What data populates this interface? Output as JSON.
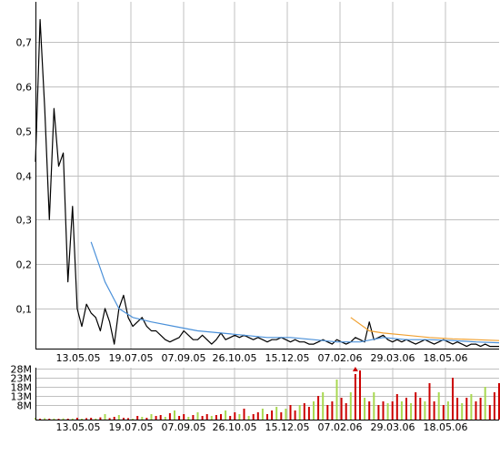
{
  "colors": {
    "background": "#ffffff",
    "grid": "#c0c0c0",
    "axis": "#000000",
    "price_line": "#000000",
    "ma_long": "#4a90d9",
    "ma_short": "#f0a030",
    "volume_up": "#cc0000",
    "volume_down": "#a8d850",
    "volume_marker": "#cc0000"
  },
  "chart_data": [
    {
      "type": "line",
      "panel": "price",
      "title": "",
      "xlabel": "",
      "ylabel": "",
      "x_tick_labels": [
        "13.05.05",
        "19.07.05",
        "07.09.05",
        "26.10.05",
        "15.12.05",
        "07.02.06",
        "29.03.06",
        "18.05.06"
      ],
      "y_ticks": [
        0.1,
        0.2,
        0.3,
        0.4,
        0.5,
        0.6,
        0.7
      ],
      "y_tick_labels": [
        "0,1",
        "0,2",
        "0,3",
        "0,4",
        "0,5",
        "0,6",
        "0,7"
      ],
      "ylim": [
        0.01,
        0.79
      ],
      "grid": true,
      "x_index_range": [
        0,
        100
      ],
      "series": [
        {
          "key": "price",
          "style": "price_line",
          "x": [
            0,
            1,
            2,
            3,
            4,
            5,
            6,
            7,
            8,
            9,
            10,
            11,
            12,
            13,
            14,
            15,
            16,
            17,
            18,
            19,
            20,
            21,
            22,
            23,
            24,
            25,
            26,
            27,
            28,
            29,
            30,
            31,
            32,
            33,
            34,
            35,
            36,
            37,
            38,
            39,
            40,
            41,
            42,
            43,
            44,
            45,
            46,
            47,
            48,
            49,
            50,
            51,
            52,
            53,
            54,
            55,
            56,
            57,
            58,
            59,
            60,
            61,
            62,
            63,
            64,
            65,
            66,
            67,
            68,
            69,
            70,
            71,
            72,
            73,
            74,
            75,
            76,
            77,
            78,
            79,
            80,
            81,
            82,
            83,
            84,
            85,
            86,
            87,
            88,
            89,
            90,
            91,
            92,
            93,
            94,
            95,
            96,
            97,
            98,
            99,
            100
          ],
          "values": [
            0.43,
            0.75,
            0.55,
            0.3,
            0.55,
            0.42,
            0.45,
            0.16,
            0.33,
            0.1,
            0.06,
            0.11,
            0.09,
            0.08,
            0.05,
            0.1,
            0.07,
            0.02,
            0.1,
            0.13,
            0.08,
            0.06,
            0.07,
            0.08,
            0.06,
            0.05,
            0.05,
            0.04,
            0.03,
            0.025,
            0.03,
            0.035,
            0.05,
            0.04,
            0.03,
            0.03,
            0.04,
            0.03,
            0.02,
            0.03,
            0.045,
            0.03,
            0.035,
            0.04,
            0.035,
            0.04,
            0.035,
            0.03,
            0.035,
            0.03,
            0.025,
            0.03,
            0.03,
            0.035,
            0.03,
            0.025,
            0.03,
            0.025,
            0.025,
            0.02,
            0.02,
            0.025,
            0.03,
            0.025,
            0.02,
            0.03,
            0.025,
            0.02,
            0.025,
            0.035,
            0.03,
            0.025,
            0.07,
            0.03,
            0.035,
            0.04,
            0.03,
            0.025,
            0.03,
            0.025,
            0.03,
            0.025,
            0.02,
            0.025,
            0.03,
            0.025,
            0.02,
            0.025,
            0.03,
            0.025,
            0.02,
            0.025,
            0.02,
            0.015,
            0.02,
            0.02,
            0.015,
            0.02,
            0.015,
            0.015,
            0.015
          ]
        },
        {
          "key": "ma_long",
          "style": "ma_long",
          "x": [
            12,
            15,
            18,
            21,
            25,
            30,
            35,
            40,
            45,
            50,
            55,
            60,
            65,
            70,
            75,
            80,
            85,
            90,
            95,
            100
          ],
          "values": [
            0.25,
            0.16,
            0.1,
            0.08,
            0.07,
            0.06,
            0.05,
            0.045,
            0.04,
            0.035,
            0.035,
            0.03,
            0.025,
            0.025,
            0.035,
            0.03,
            0.03,
            0.028,
            0.025,
            0.023
          ]
        },
        {
          "key": "ma_short",
          "style": "ma_short",
          "x": [
            68,
            72,
            75,
            80,
            85,
            90,
            95,
            100
          ],
          "values": [
            0.08,
            0.05,
            0.045,
            0.04,
            0.035,
            0.032,
            0.03,
            0.028
          ]
        }
      ]
    },
    {
      "type": "bar",
      "panel": "volume",
      "title": "",
      "xlabel": "",
      "ylabel": "",
      "x_tick_labels": [
        "13.05.05",
        "19.07.05",
        "07.09.05",
        "26.10.05",
        "15.12.05",
        "07.02.06",
        "29.03.06",
        "18.05.06"
      ],
      "y_ticks": [
        8,
        13,
        18,
        23,
        28
      ],
      "y_tick_labels": [
        "8M",
        "13M",
        "18M",
        "23M",
        "28M"
      ],
      "ylim": [
        0,
        28.5
      ],
      "unit": "M",
      "grid": true,
      "x_index_range": [
        0,
        100
      ],
      "bars": {
        "x": [
          0,
          1,
          2,
          3,
          4,
          5,
          6,
          7,
          8,
          9,
          10,
          11,
          12,
          13,
          14,
          15,
          16,
          17,
          18,
          19,
          20,
          21,
          22,
          23,
          24,
          25,
          26,
          27,
          28,
          29,
          30,
          31,
          32,
          33,
          34,
          35,
          36,
          37,
          38,
          39,
          40,
          41,
          42,
          43,
          44,
          45,
          46,
          47,
          48,
          49,
          50,
          51,
          52,
          53,
          54,
          55,
          56,
          57,
          58,
          59,
          60,
          61,
          62,
          63,
          64,
          65,
          66,
          67,
          68,
          69,
          70,
          71,
          72,
          73,
          74,
          75,
          76,
          77,
          78,
          79,
          80,
          81,
          82,
          83,
          84,
          85,
          86,
          87,
          88,
          89,
          90,
          91,
          92,
          93,
          94,
          95,
          96,
          97,
          98,
          99,
          100
        ],
        "values": [
          1,
          0.5,
          0.8,
          0.5,
          0.6,
          0.4,
          0.7,
          0.5,
          0.6,
          1,
          0.5,
          0.8,
          1,
          0.6,
          1.2,
          3,
          0.8,
          1.5,
          2.5,
          1,
          0.8,
          0.5,
          2,
          1.5,
          1,
          3,
          2,
          2.5,
          1.5,
          3.5,
          5,
          2,
          3,
          1.5,
          2.5,
          4,
          2,
          3,
          2,
          2.5,
          3,
          5,
          2,
          4,
          3,
          6,
          2,
          3,
          4,
          6,
          3,
          5,
          7,
          4,
          6,
          8,
          5,
          8,
          9,
          7,
          10,
          13,
          15,
          8,
          10,
          22,
          12,
          9,
          15,
          25,
          27,
          12,
          10,
          15,
          8,
          10,
          9,
          10,
          14,
          10,
          12,
          9,
          15,
          12,
          10,
          20,
          10,
          15,
          8,
          10,
          23,
          12,
          9,
          12,
          14,
          10,
          12,
          18,
          8,
          15,
          20
        ],
        "up": [
          false,
          true,
          false,
          true,
          false,
          true,
          false,
          true,
          false,
          true,
          false,
          true,
          true,
          false,
          true,
          false,
          true,
          true,
          false,
          true,
          true,
          false,
          true,
          false,
          true,
          false,
          true,
          true,
          false,
          true,
          false,
          true,
          true,
          false,
          true,
          false,
          true,
          true,
          false,
          true,
          true,
          false,
          true,
          true,
          false,
          true,
          false,
          true,
          true,
          false,
          true,
          true,
          false,
          true,
          false,
          true,
          true,
          false,
          true,
          true,
          false,
          true,
          false,
          true,
          true,
          false,
          true,
          true,
          false,
          true,
          true,
          false,
          true,
          false,
          true,
          true,
          false,
          true,
          true,
          false,
          true,
          false,
          true,
          true,
          false,
          true,
          true,
          false,
          true,
          false,
          true,
          true,
          false,
          true,
          false,
          true,
          true,
          false,
          true,
          true,
          true
        ],
        "marker_index": 69
      }
    }
  ]
}
